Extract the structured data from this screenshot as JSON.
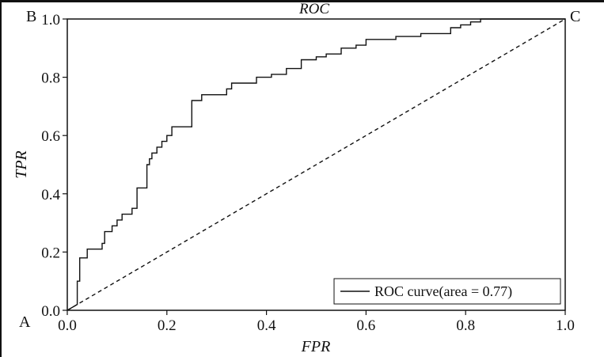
{
  "chart_data": {
    "type": "line",
    "title": "ROC",
    "xlabel": "FPR",
    "ylabel": "TPR",
    "xlim": [
      0.0,
      1.0
    ],
    "ylim": [
      0.0,
      1.0
    ],
    "xticks": [
      "0.0",
      "0.2",
      "0.4",
      "0.6",
      "0.8",
      "1.0"
    ],
    "yticks": [
      "0.0",
      "0.2",
      "0.4",
      "0.6",
      "0.8",
      "1.0"
    ],
    "grid": false,
    "legend_position": "bottom-right",
    "corner_labels": {
      "origin": "A",
      "top_left": "B",
      "top_right": "C"
    },
    "series": [
      {
        "name": "ROC curve(area = 0.77)",
        "style": "solid",
        "x": [
          0.0,
          0.02,
          0.02,
          0.025,
          0.025,
          0.04,
          0.04,
          0.07,
          0.07,
          0.075,
          0.075,
          0.09,
          0.09,
          0.1,
          0.1,
          0.11,
          0.11,
          0.13,
          0.13,
          0.14,
          0.14,
          0.16,
          0.16,
          0.165,
          0.165,
          0.17,
          0.17,
          0.18,
          0.18,
          0.19,
          0.19,
          0.2,
          0.2,
          0.21,
          0.21,
          0.25,
          0.25,
          0.27,
          0.27,
          0.32,
          0.32,
          0.33,
          0.33,
          0.38,
          0.38,
          0.41,
          0.41,
          0.44,
          0.44,
          0.47,
          0.47,
          0.5,
          0.5,
          0.52,
          0.52,
          0.55,
          0.55,
          0.58,
          0.58,
          0.6,
          0.6,
          0.66,
          0.66,
          0.71,
          0.71,
          0.77,
          0.77,
          0.79,
          0.79,
          0.81,
          0.81,
          0.83,
          0.83,
          1.0
        ],
        "y": [
          0.0,
          0.02,
          0.1,
          0.1,
          0.18,
          0.18,
          0.21,
          0.21,
          0.23,
          0.23,
          0.27,
          0.27,
          0.29,
          0.29,
          0.31,
          0.31,
          0.33,
          0.33,
          0.35,
          0.35,
          0.42,
          0.42,
          0.5,
          0.5,
          0.52,
          0.52,
          0.54,
          0.54,
          0.56,
          0.56,
          0.58,
          0.58,
          0.6,
          0.6,
          0.63,
          0.63,
          0.72,
          0.72,
          0.74,
          0.74,
          0.76,
          0.76,
          0.78,
          0.78,
          0.8,
          0.8,
          0.81,
          0.81,
          0.83,
          0.83,
          0.86,
          0.86,
          0.87,
          0.87,
          0.88,
          0.88,
          0.9,
          0.9,
          0.91,
          0.91,
          0.93,
          0.93,
          0.94,
          0.94,
          0.95,
          0.95,
          0.97,
          0.97,
          0.98,
          0.98,
          0.99,
          0.99,
          1.0,
          1.0
        ]
      },
      {
        "style": "dashed",
        "x": [
          0.0,
          1.0
        ],
        "y": [
          0.0,
          1.0
        ]
      }
    ],
    "legend": {
      "entries": [
        "ROC curve(area = 0.77)"
      ]
    }
  }
}
